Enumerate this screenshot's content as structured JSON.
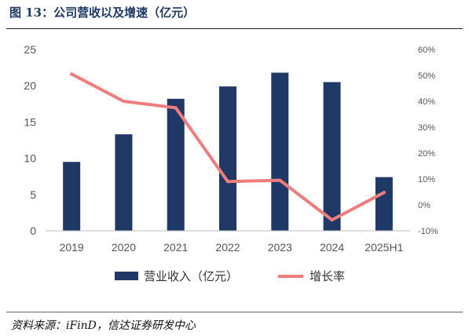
{
  "figure": {
    "title": "图 13：公司营收以及增速（亿元）",
    "source": "资料来源：iFinD，信达证券研发中心"
  },
  "colors": {
    "bar": "#1f3866",
    "line": "#f07c7e",
    "rule": "#222222",
    "axis": "#bfbfbf"
  },
  "chart_data": {
    "type": "bar",
    "categories": [
      "2019",
      "2020",
      "2021",
      "2022",
      "2023",
      "2024",
      "2025H1"
    ],
    "series": [
      {
        "name": "营业收入（亿元）",
        "type": "bar",
        "axis": "left",
        "values": [
          9.5,
          13.3,
          18.2,
          19.9,
          21.8,
          20.5,
          7.4
        ]
      },
      {
        "name": "增长率",
        "type": "line",
        "axis": "right",
        "values": [
          50.5,
          40.0,
          37.5,
          9.0,
          9.5,
          -5.8,
          4.8
        ]
      }
    ],
    "y_left": {
      "min": 0,
      "max": 25,
      "ticks": [
        "0",
        "5",
        "10",
        "15",
        "20",
        "25"
      ]
    },
    "y_right": {
      "min": -10,
      "max": 60,
      "ticks": [
        "-10%",
        "0%",
        "10%",
        "20%",
        "30%",
        "40%",
        "50%",
        "60%"
      ]
    },
    "grid": false,
    "legend": "bottom"
  }
}
